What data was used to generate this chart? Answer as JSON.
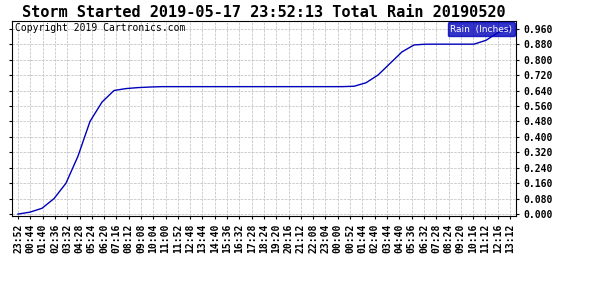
{
  "title": "Storm Started 2019-05-17 23:52:13 Total Rain 20190520",
  "copyright": "Copyright 2019 Cartronics.com",
  "legend_label": "Rain  (Inches)",
  "line_color": "#0000bb",
  "background_color": "#ffffff",
  "grid_color": "#bbbbbb",
  "ylim": [
    -0.01,
    1.0
  ],
  "yticks": [
    0.0,
    0.08,
    0.16,
    0.24,
    0.32,
    0.4,
    0.48,
    0.56,
    0.64,
    0.72,
    0.8,
    0.88,
    0.96
  ],
  "xtick_labels": [
    "23:52",
    "00:44",
    "01:40",
    "02:36",
    "03:32",
    "04:28",
    "05:24",
    "06:20",
    "07:16",
    "08:12",
    "09:08",
    "10:04",
    "11:00",
    "11:52",
    "12:48",
    "13:44",
    "14:40",
    "15:36",
    "16:32",
    "17:28",
    "18:24",
    "19:20",
    "20:16",
    "21:12",
    "22:08",
    "23:04",
    "00:00",
    "00:52",
    "01:44",
    "02:40",
    "03:44",
    "04:40",
    "05:36",
    "06:32",
    "07:28",
    "08:24",
    "09:20",
    "10:16",
    "11:12",
    "12:16",
    "13:12"
  ],
  "y_values": [
    0.0,
    0.01,
    0.03,
    0.08,
    0.16,
    0.3,
    0.48,
    0.58,
    0.64,
    0.65,
    0.655,
    0.658,
    0.66,
    0.66,
    0.66,
    0.66,
    0.66,
    0.66,
    0.66,
    0.66,
    0.66,
    0.66,
    0.66,
    0.66,
    0.66,
    0.66,
    0.66,
    0.66,
    0.662,
    0.68,
    0.72,
    0.78,
    0.84,
    0.876,
    0.88,
    0.88,
    0.88,
    0.88,
    0.88,
    0.9,
    0.94,
    0.96
  ],
  "title_fontsize": 11,
  "tick_fontsize": 7,
  "copyright_fontsize": 7
}
